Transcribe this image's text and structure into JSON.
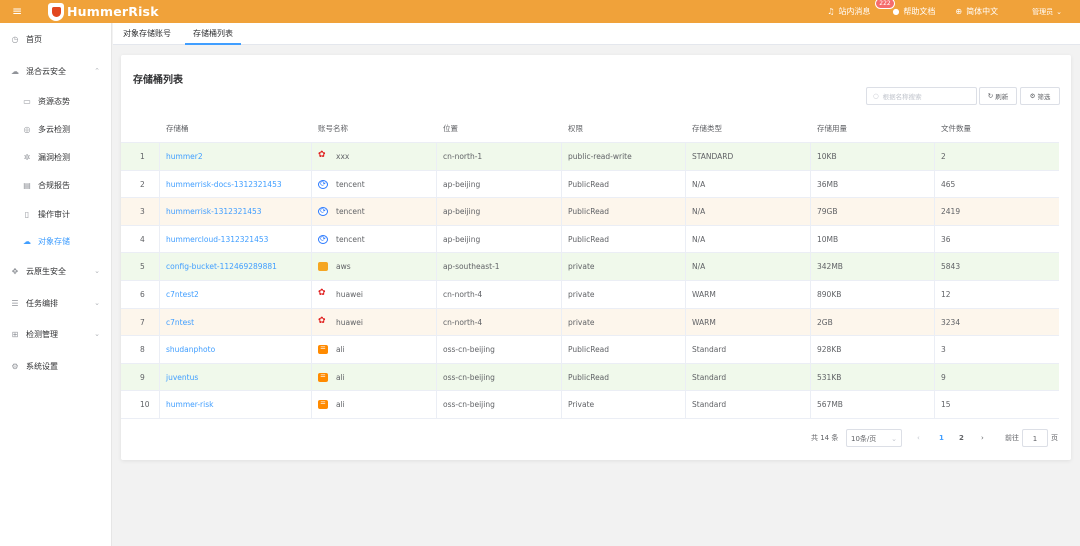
{
  "topbar": {
    "menu_icon": "hamburger-icon",
    "logo_text": "HummerRisk",
    "messages_label": "站内消息",
    "messages_count": "222",
    "help_label": "帮助文档",
    "language_label": "简体中文",
    "user_label": "管理员",
    "bg_color": "#f0a23a"
  },
  "sidebar": {
    "items": [
      {
        "label": "首页",
        "icon": "dashboard-icon"
      },
      {
        "label": "混合云安全",
        "icon": "cloud-icon"
      },
      {
        "label": "资源态势",
        "icon": "monitor-icon"
      },
      {
        "label": "多云检测",
        "icon": "radar-icon"
      },
      {
        "label": "漏洞检测",
        "icon": "bug-icon"
      },
      {
        "label": "合规报告",
        "icon": "report-icon"
      },
      {
        "label": "操作审计",
        "icon": "audit-icon"
      },
      {
        "label": "对象存储",
        "icon": "storage-icon"
      },
      {
        "label": "云原生安全",
        "icon": "cloud-native-icon"
      },
      {
        "label": "任务编排",
        "icon": "task-icon"
      },
      {
        "label": "检测管理",
        "icon": "detect-icon"
      },
      {
        "label": "系统设置",
        "icon": "settings-icon"
      }
    ]
  },
  "tabs": [
    {
      "label": "对象存储账号"
    },
    {
      "label": "存储桶列表"
    }
  ],
  "card": {
    "title": "存储桶列表",
    "search_placeholder": "根据名称搜索",
    "refresh_label": "刷新",
    "filter_label": "筛选"
  },
  "table": {
    "headers": [
      "存储桶",
      "账号名称",
      "位置",
      "权限",
      "存储类型",
      "存储用量",
      "文件数量"
    ],
    "rows": [
      {
        "idx": "1",
        "bucket": "hummer2",
        "provider": "huawei",
        "account": "xxx",
        "location": "cn-north-1",
        "perm": "public-read-write",
        "type": "STANDARD",
        "usage": "10KB",
        "files": "2"
      },
      {
        "idx": "2",
        "bucket": "hummerrisk-docs-1312321453",
        "provider": "tencent",
        "account": "tencent",
        "location": "ap-beijing",
        "perm": "PublicRead",
        "type": "N/A",
        "usage": "36MB",
        "files": "465"
      },
      {
        "idx": "3",
        "bucket": "hummerrisk-1312321453",
        "provider": "tencent",
        "account": "tencent",
        "location": "ap-beijing",
        "perm": "PublicRead",
        "type": "N/A",
        "usage": "79GB",
        "files": "2419"
      },
      {
        "idx": "4",
        "bucket": "hummercloud-1312321453",
        "provider": "tencent",
        "account": "tencent",
        "location": "ap-beijing",
        "perm": "PublicRead",
        "type": "N/A",
        "usage": "10MB",
        "files": "36"
      },
      {
        "idx": "5",
        "bucket": "config-bucket-112469289881",
        "provider": "aws",
        "account": "aws",
        "location": "ap-southeast-1",
        "perm": "private",
        "type": "N/A",
        "usage": "342MB",
        "files": "5843"
      },
      {
        "idx": "6",
        "bucket": "c7ntest2",
        "provider": "huawei",
        "account": "huawei",
        "location": "cn-north-4",
        "perm": "private",
        "type": "WARM",
        "usage": "890KB",
        "files": "12"
      },
      {
        "idx": "7",
        "bucket": "c7ntest",
        "provider": "huawei",
        "account": "huawei",
        "location": "cn-north-4",
        "perm": "private",
        "type": "WARM",
        "usage": "2GB",
        "files": "3234"
      },
      {
        "idx": "8",
        "bucket": "shudanphoto",
        "provider": "ali",
        "account": "ali",
        "location": "oss-cn-beijing",
        "perm": "PublicRead",
        "type": "Standard",
        "usage": "928KB",
        "files": "3"
      },
      {
        "idx": "9",
        "bucket": "juventus",
        "provider": "ali",
        "account": "ali",
        "location": "oss-cn-beijing",
        "perm": "PublicRead",
        "type": "Standard",
        "usage": "531KB",
        "files": "9"
      },
      {
        "idx": "10",
        "bucket": "hummer-risk",
        "provider": "ali",
        "account": "ali",
        "location": "oss-cn-beijing",
        "perm": "Private",
        "type": "Standard",
        "usage": "567MB",
        "files": "15"
      }
    ]
  },
  "pagination": {
    "total": "共 14 条",
    "page_size": "10条/页",
    "prev": "‹",
    "pages": [
      "1",
      "2"
    ],
    "current": "1",
    "next": "›",
    "goto_label": "前往",
    "goto_value": "1",
    "page_suffix": "页"
  }
}
